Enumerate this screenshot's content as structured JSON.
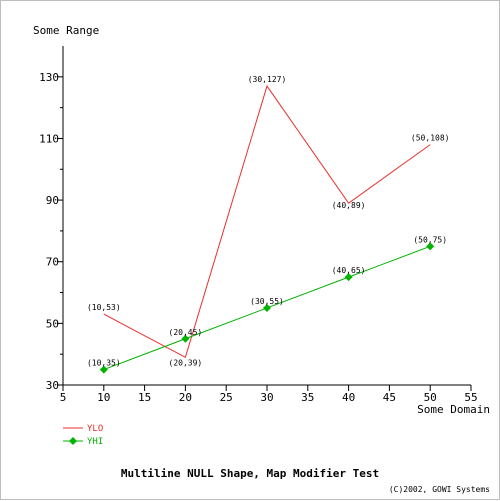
{
  "chart_data": {
    "type": "line",
    "title": "Multiline NULL Shape, Map Modifier Test",
    "xlabel": "Some Domain",
    "ylabel": "Some Range",
    "xlim": [
      5,
      55
    ],
    "ylim": [
      30,
      140
    ],
    "x_ticks": [
      5,
      10,
      15,
      20,
      25,
      30,
      35,
      40,
      45,
      50,
      55
    ],
    "y_ticks": [
      30,
      50,
      70,
      90,
      110,
      130
    ],
    "grid": false,
    "legend_position": "bottom-left",
    "x": [
      10,
      20,
      30,
      40,
      50
    ],
    "series": [
      {
        "name": "YLO",
        "values": [
          53,
          39,
          127,
          89,
          108
        ],
        "color": "#e8302c",
        "marker": "none",
        "point_labels": [
          "(10,53)",
          "(20,39)",
          "(30,127)",
          "(40,89)",
          "(50,108)"
        ]
      },
      {
        "name": "YHI",
        "values": [
          35,
          45,
          55,
          65,
          75
        ],
        "color": "#00b400",
        "marker": "diamond",
        "point_labels": [
          "(10,35)",
          "(20,45)",
          "(30,55)",
          "(40,65)",
          "(50,75)"
        ]
      }
    ]
  },
  "footer": {
    "credit": "(C)2002, GOWI Systems"
  }
}
